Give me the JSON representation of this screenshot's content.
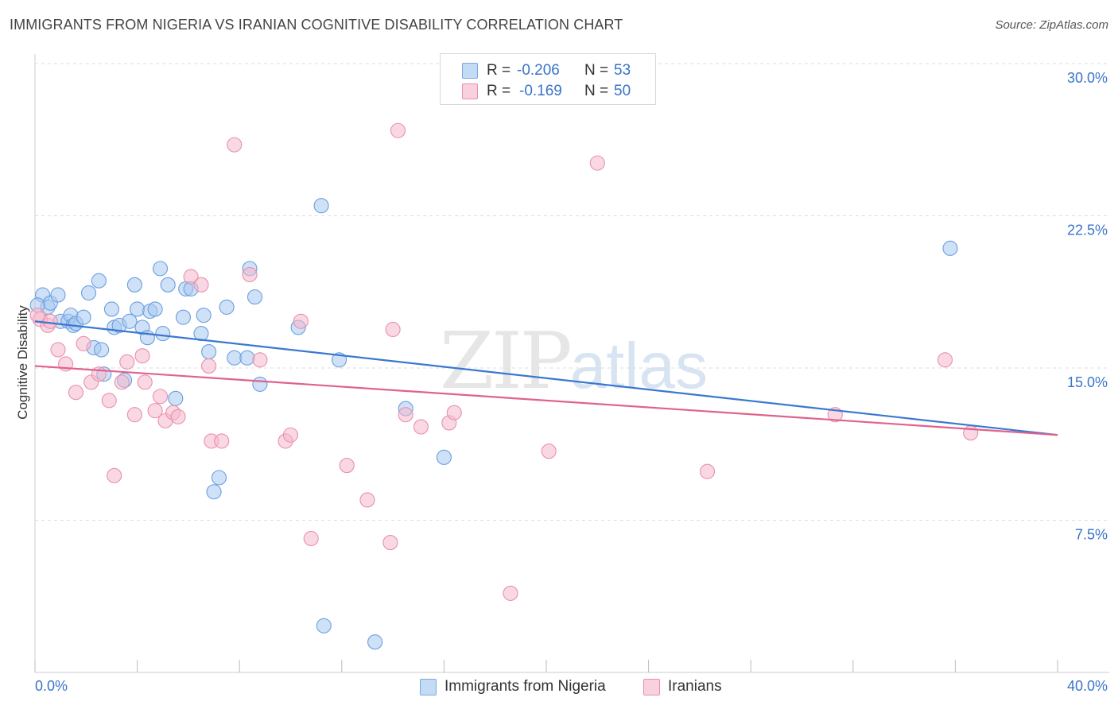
{
  "title": "IMMIGRANTS FROM NIGERIA VS IRANIAN COGNITIVE DISABILITY CORRELATION CHART",
  "source": "Source: ZipAtlas.com",
  "watermark": {
    "zip": "ZIP",
    "atlas": "atlas"
  },
  "stats": [
    {
      "r_label": "R =",
      "r_value": "-0.206",
      "n_label": "N =",
      "n_value": "53",
      "color": "#a8c8f0"
    },
    {
      "r_label": "R =",
      "r_value": "-0.169",
      "n_label": "N =",
      "n_value": "50",
      "color": "#f5b8cc"
    }
  ],
  "legend": [
    {
      "label": "Immigrants from Nigeria",
      "color": "#a8c8f0"
    },
    {
      "label": "Iranians",
      "color": "#f5b8cc"
    }
  ],
  "chart_data": {
    "type": "scatter",
    "title": "IMMIGRANTS FROM NIGERIA VS IRANIAN COGNITIVE DISABILITY CORRELATION CHART",
    "xlabel": "",
    "ylabel": "Cognitive Disability",
    "xlim": [
      0,
      40
    ],
    "ylim": [
      0,
      30
    ],
    "x_tick_labels": [
      "0.0%",
      "40.0%"
    ],
    "y_ticks": [
      7.5,
      15.0,
      22.5,
      30.0
    ],
    "y_tick_labels": [
      "7.5%",
      "15.0%",
      "22.5%",
      "30.0%"
    ],
    "grid": true,
    "series": [
      {
        "name": "Immigrants from Nigeria",
        "color": "#6a9ee0",
        "fill": "#a8c8f0",
        "trend": {
          "x": [
            0,
            40
          ],
          "y": [
            17.3,
            11.7
          ],
          "color": "#3a78d0"
        },
        "points": [
          [
            0.3,
            18.6
          ],
          [
            0.5,
            18.0
          ],
          [
            0.6,
            18.2
          ],
          [
            0.9,
            18.6
          ],
          [
            1.0,
            17.3
          ],
          [
            1.3,
            17.3
          ],
          [
            1.4,
            17.6
          ],
          [
            1.5,
            17.1
          ],
          [
            1.6,
            17.2
          ],
          [
            1.9,
            17.5
          ],
          [
            2.1,
            18.7
          ],
          [
            2.3,
            16.0
          ],
          [
            2.5,
            19.3
          ],
          [
            2.6,
            15.9
          ],
          [
            2.7,
            14.7
          ],
          [
            3.0,
            17.9
          ],
          [
            3.1,
            17.0
          ],
          [
            3.3,
            17.1
          ],
          [
            3.5,
            14.4
          ],
          [
            3.7,
            17.3
          ],
          [
            3.9,
            19.1
          ],
          [
            4.0,
            17.9
          ],
          [
            4.2,
            17.0
          ],
          [
            4.4,
            16.5
          ],
          [
            4.5,
            17.8
          ],
          [
            4.7,
            17.9
          ],
          [
            4.9,
            19.9
          ],
          [
            5.0,
            16.7
          ],
          [
            5.2,
            19.1
          ],
          [
            5.5,
            13.5
          ],
          [
            5.8,
            17.5
          ],
          [
            5.9,
            18.9
          ],
          [
            6.1,
            18.9
          ],
          [
            6.5,
            16.7
          ],
          [
            6.6,
            17.6
          ],
          [
            6.8,
            15.8
          ],
          [
            7.2,
            9.6
          ],
          [
            7.0,
            8.9
          ],
          [
            7.5,
            18.0
          ],
          [
            7.8,
            15.5
          ],
          [
            8.3,
            15.5
          ],
          [
            8.4,
            19.9
          ],
          [
            8.6,
            18.5
          ],
          [
            8.8,
            14.2
          ],
          [
            10.3,
            17.0
          ],
          [
            11.2,
            23.0
          ],
          [
            11.9,
            15.4
          ],
          [
            11.3,
            2.3
          ],
          [
            13.3,
            1.5
          ],
          [
            14.5,
            13.0
          ],
          [
            16.0,
            10.6
          ],
          [
            35.8,
            20.9
          ],
          [
            0.1,
            18.1
          ]
        ]
      },
      {
        "name": "Iranians",
        "color": "#e890ac",
        "fill": "#f5b8cc",
        "trend": {
          "x": [
            0,
            40
          ],
          "y": [
            15.1,
            11.7
          ],
          "color": "#e0628c"
        },
        "points": [
          [
            0.2,
            17.4
          ],
          [
            0.5,
            17.1
          ],
          [
            0.9,
            15.9
          ],
          [
            1.2,
            15.2
          ],
          [
            1.6,
            13.8
          ],
          [
            1.9,
            16.2
          ],
          [
            2.2,
            14.3
          ],
          [
            2.5,
            14.7
          ],
          [
            2.9,
            13.4
          ],
          [
            3.1,
            9.7
          ],
          [
            3.4,
            14.3
          ],
          [
            3.6,
            15.3
          ],
          [
            3.9,
            12.7
          ],
          [
            4.2,
            15.6
          ],
          [
            4.3,
            14.3
          ],
          [
            4.7,
            12.9
          ],
          [
            4.9,
            13.6
          ],
          [
            5.1,
            12.4
          ],
          [
            5.4,
            12.8
          ],
          [
            5.6,
            12.6
          ],
          [
            6.1,
            19.5
          ],
          [
            6.5,
            19.1
          ],
          [
            6.8,
            15.1
          ],
          [
            6.9,
            11.4
          ],
          [
            7.3,
            11.4
          ],
          [
            7.8,
            26.0
          ],
          [
            8.4,
            19.6
          ],
          [
            8.8,
            15.4
          ],
          [
            9.8,
            11.4
          ],
          [
            10.0,
            11.7
          ],
          [
            10.4,
            17.3
          ],
          [
            10.8,
            6.6
          ],
          [
            12.2,
            10.2
          ],
          [
            13.0,
            8.5
          ],
          [
            13.9,
            6.4
          ],
          [
            14.0,
            16.9
          ],
          [
            14.2,
            26.7
          ],
          [
            14.5,
            12.7
          ],
          [
            15.1,
            12.1
          ],
          [
            16.2,
            12.3
          ],
          [
            16.4,
            12.8
          ],
          [
            18.6,
            3.9
          ],
          [
            20.1,
            10.9
          ],
          [
            22.0,
            25.1
          ],
          [
            26.3,
            9.9
          ],
          [
            31.3,
            12.7
          ],
          [
            35.6,
            15.4
          ],
          [
            36.6,
            11.8
          ],
          [
            0.6,
            17.3
          ],
          [
            0.1,
            17.6
          ]
        ]
      }
    ]
  }
}
